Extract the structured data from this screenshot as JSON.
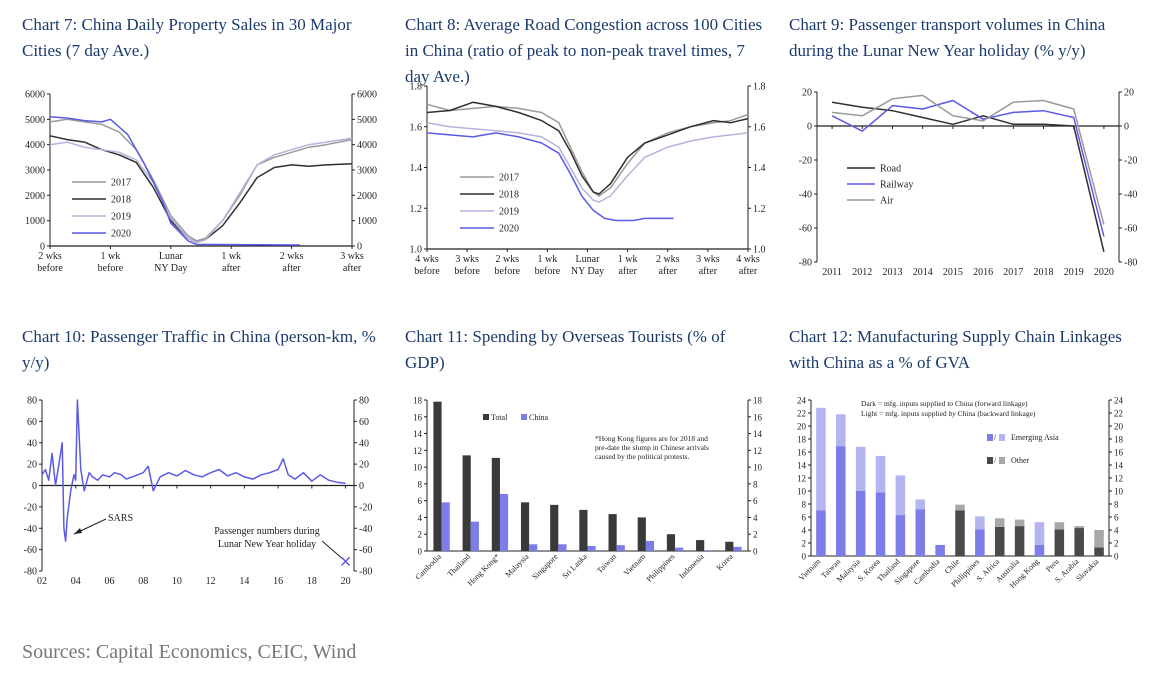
{
  "sources": "Sources: Capital Economics, CEIC, Wind",
  "chart_data": [
    {
      "id": "c7",
      "type": "line",
      "title": "Chart 7: China Daily Property Sales in 30 Major Cities (7 day Ave.)",
      "xlim": [
        -14,
        21
      ],
      "ylim": [
        0,
        6000
      ],
      "yticks": [
        "0",
        "1000",
        "2000",
        "3000",
        "4000",
        "5000",
        "6000"
      ],
      "ytick_values": [
        0,
        1000,
        2000,
        3000,
        4000,
        5000,
        6000
      ],
      "xticks": [
        {
          "v": -14,
          "l1": "2 wks",
          "l2": "before"
        },
        {
          "v": -7,
          "l1": "1 wk",
          "l2": "before"
        },
        {
          "v": 0,
          "l1": "Lunar",
          "l2": "NY Day"
        },
        {
          "v": 7,
          "l1": "1 wk",
          "l2": "after"
        },
        {
          "v": 14,
          "l1": "2 wks",
          "l2": "after"
        },
        {
          "v": 21,
          "l1": "3 wks",
          "l2": "after"
        }
      ],
      "series": [
        {
          "name": "2017",
          "color": "#9a9a9a",
          "x": [
            -14,
            -12,
            -10,
            -8,
            -6,
            -4,
            -2,
            0,
            2,
            3,
            4,
            6,
            8,
            10,
            12,
            14,
            16,
            18,
            21
          ],
          "y": [
            4900,
            5000,
            4900,
            4800,
            4500,
            3800,
            2600,
            1200,
            400,
            200,
            300,
            1000,
            2000,
            3200,
            3500,
            3700,
            3900,
            4000,
            4200
          ]
        },
        {
          "name": "2018",
          "color": "#2f2f2f",
          "x": [
            -14,
            -12,
            -10,
            -8,
            -6,
            -4,
            -2,
            0,
            2,
            3,
            4,
            6,
            8,
            10,
            12,
            14,
            16,
            18,
            21
          ],
          "y": [
            4350,
            4200,
            4100,
            3800,
            3600,
            3300,
            2300,
            1000,
            300,
            150,
            250,
            800,
            1700,
            2700,
            3100,
            3200,
            3150,
            3200,
            3250
          ]
        },
        {
          "name": "2019",
          "color": "#b4b4dc",
          "x": [
            -14,
            -12,
            -10,
            -8,
            -6,
            -4,
            -2,
            0,
            2,
            3,
            4,
            6,
            8,
            10,
            12,
            14,
            16,
            18,
            21
          ],
          "y": [
            4000,
            4100,
            3900,
            3800,
            3700,
            3400,
            2500,
            1100,
            300,
            150,
            250,
            1000,
            2100,
            3200,
            3600,
            3800,
            4000,
            4100,
            4250
          ]
        },
        {
          "name": "2020",
          "color": "#5a5ae6",
          "x": [
            -14,
            -12,
            -10,
            -8,
            -7,
            -5,
            -3,
            -1,
            0,
            2,
            3,
            5,
            10,
            15
          ],
          "y": [
            5100,
            5050,
            4950,
            4900,
            5000,
            4400,
            3200,
            1800,
            900,
            200,
            60,
            60,
            50,
            40
          ]
        }
      ]
    },
    {
      "id": "c8",
      "type": "line",
      "title": "Chart 8: Average Road Congestion across 100 Cities in China (ratio of peak to non-peak travel times, 7 day Ave.)",
      "xlim": [
        -28,
        28
      ],
      "ylim": [
        1.0,
        1.8
      ],
      "yticks": [
        "1.0",
        "1.2",
        "1.4",
        "1.6",
        "1.8"
      ],
      "ytick_values": [
        1.0,
        1.2,
        1.4,
        1.6,
        1.8
      ],
      "xticks": [
        {
          "v": -28,
          "l1": "4 wks",
          "l2": "before"
        },
        {
          "v": -21,
          "l1": "3 wks",
          "l2": "before"
        },
        {
          "v": -14,
          "l1": "2 wks",
          "l2": "before"
        },
        {
          "v": -7,
          "l1": "1 wk",
          "l2": "before"
        },
        {
          "v": 0,
          "l1": "Lunar",
          "l2": "NY Day"
        },
        {
          "v": 7,
          "l1": "1 wk",
          "l2": "after"
        },
        {
          "v": 14,
          "l1": "2 wks",
          "l2": "after"
        },
        {
          "v": 21,
          "l1": "3 wks",
          "l2": "after"
        },
        {
          "v": 28,
          "l1": "4 wks",
          "l2": "after"
        }
      ],
      "series": [
        {
          "name": "2017",
          "color": "#9a9a9a",
          "x": [
            -28,
            -24,
            -20,
            -16,
            -12,
            -8,
            -5,
            -3,
            -1,
            1,
            2,
            4,
            7,
            10,
            14,
            18,
            22,
            25,
            28
          ],
          "y": [
            1.71,
            1.68,
            1.69,
            1.7,
            1.69,
            1.67,
            1.62,
            1.5,
            1.38,
            1.28,
            1.26,
            1.3,
            1.42,
            1.52,
            1.57,
            1.6,
            1.62,
            1.63,
            1.66
          ]
        },
        {
          "name": "2018",
          "color": "#2f2f2f",
          "x": [
            -28,
            -24,
            -20,
            -16,
            -12,
            -8,
            -5,
            -3,
            -1,
            1,
            2,
            4,
            7,
            10,
            14,
            18,
            22,
            25,
            28
          ],
          "y": [
            1.67,
            1.68,
            1.72,
            1.7,
            1.67,
            1.63,
            1.58,
            1.48,
            1.36,
            1.28,
            1.27,
            1.32,
            1.45,
            1.52,
            1.56,
            1.6,
            1.63,
            1.62,
            1.64
          ]
        },
        {
          "name": "2019",
          "color": "#b4b4dc",
          "x": [
            -28,
            -24,
            -20,
            -16,
            -12,
            -8,
            -5,
            -3,
            -1,
            1,
            2,
            4,
            7,
            10,
            14,
            18,
            22,
            25,
            28
          ],
          "y": [
            1.62,
            1.6,
            1.59,
            1.58,
            1.57,
            1.55,
            1.5,
            1.4,
            1.3,
            1.24,
            1.23,
            1.26,
            1.36,
            1.45,
            1.5,
            1.53,
            1.55,
            1.56,
            1.57
          ]
        },
        {
          "name": "2020",
          "color": "#5a5ae6",
          "x": [
            -28,
            -24,
            -20,
            -16,
            -12,
            -8,
            -5,
            -3,
            -1,
            1,
            3,
            5,
            8,
            10,
            12,
            15
          ],
          "y": [
            1.57,
            1.56,
            1.55,
            1.57,
            1.55,
            1.52,
            1.47,
            1.37,
            1.26,
            1.19,
            1.15,
            1.14,
            1.14,
            1.15,
            1.15,
            1.15
          ]
        }
      ]
    },
    {
      "id": "c9",
      "type": "line",
      "title": "Chart 9: Passenger transport volumes in China during the Lunar New Year holiday (% y/y)",
      "xlim": [
        2010.5,
        2020.5
      ],
      "ylim": [
        -80,
        20
      ],
      "yticks": [
        "-80",
        "-60",
        "-40",
        "-20",
        "0",
        "20"
      ],
      "ytick_values": [
        -80,
        -60,
        -40,
        -20,
        0,
        20
      ],
      "xticks": [
        {
          "v": 2011,
          "l1": "2011"
        },
        {
          "v": 2012,
          "l1": "2012"
        },
        {
          "v": 2013,
          "l1": "2013"
        },
        {
          "v": 2014,
          "l1": "2014"
        },
        {
          "v": 2015,
          "l1": "2015"
        },
        {
          "v": 2016,
          "l1": "2016"
        },
        {
          "v": 2017,
          "l1": "2017"
        },
        {
          "v": 2018,
          "l1": "2018"
        },
        {
          "v": 2019,
          "l1": "2019"
        },
        {
          "v": 2020,
          "l1": "2020"
        }
      ],
      "series": [
        {
          "name": "Road",
          "color": "#2f2f2f",
          "x": [
            2011,
            2012,
            2013,
            2014,
            2015,
            2016,
            2017,
            2018,
            2019,
            2020
          ],
          "y": [
            14,
            11,
            9,
            5,
            1,
            6,
            1,
            1,
            0,
            -74
          ]
        },
        {
          "name": "Railway",
          "color": "#5a5ae6",
          "x": [
            2011,
            2012,
            2013,
            2014,
            2015,
            2016,
            2017,
            2018,
            2019,
            2020
          ],
          "y": [
            6,
            -3,
            12,
            10,
            15,
            4,
            8,
            9,
            5,
            -65
          ]
        },
        {
          "name": "Air",
          "color": "#9a9a9a",
          "x": [
            2011,
            2012,
            2013,
            2014,
            2015,
            2016,
            2017,
            2018,
            2019,
            2020
          ],
          "y": [
            8,
            6,
            16,
            18,
            6,
            3,
            14,
            15,
            10,
            -58
          ]
        }
      ]
    },
    {
      "id": "c10",
      "type": "line",
      "title": "Chart 10: Passenger Traffic in China (person-km, % y/y)",
      "xlim": [
        2002,
        2020.5
      ],
      "ylim": [
        -80,
        80
      ],
      "yticks": [
        "-80",
        "-60",
        "-40",
        "-20",
        "0",
        "20",
        "40",
        "60",
        "80"
      ],
      "ytick_values": [
        -80,
        -60,
        -40,
        -20,
        0,
        20,
        40,
        60,
        80
      ],
      "xticks": [
        {
          "v": 2002,
          "l1": "02"
        },
        {
          "v": 2004,
          "l1": "04"
        },
        {
          "v": 2006,
          "l1": "06"
        },
        {
          "v": 2008,
          "l1": "08"
        },
        {
          "v": 2010,
          "l1": "10"
        },
        {
          "v": 2012,
          "l1": "12"
        },
        {
          "v": 2014,
          "l1": "14"
        },
        {
          "v": 2016,
          "l1": "16"
        },
        {
          "v": 2018,
          "l1": "18"
        },
        {
          "v": 2020,
          "l1": "20"
        }
      ],
      "series": [
        {
          "name": "Passenger traffic",
          "color": "#5a5ae6",
          "x": [
            2002,
            2002.2,
            2002.4,
            2002.6,
            2002.8,
            2003,
            2003.2,
            2003.3,
            2003.4,
            2003.5,
            2003.7,
            2003.9,
            2004,
            2004.1,
            2004.3,
            2004.5,
            2004.8,
            2005,
            2005.3,
            2005.6,
            2006,
            2006.3,
            2006.7,
            2007,
            2007.5,
            2008,
            2008.3,
            2008.6,
            2009,
            2009.5,
            2010,
            2010.5,
            2011,
            2011.5,
            2012,
            2012.5,
            2013,
            2013.5,
            2014,
            2014.5,
            2015,
            2015.5,
            2016,
            2016.3,
            2016.6,
            2017,
            2017.5,
            2018,
            2018.5,
            2019,
            2019.5,
            2020
          ],
          "y": [
            10,
            15,
            5,
            30,
            0,
            20,
            40,
            -40,
            -52,
            -30,
            -5,
            10,
            5,
            80,
            15,
            -5,
            12,
            8,
            5,
            10,
            8,
            12,
            10,
            6,
            9,
            12,
            18,
            -5,
            8,
            12,
            9,
            14,
            10,
            8,
            12,
            15,
            9,
            12,
            8,
            6,
            10,
            12,
            15,
            25,
            10,
            6,
            12,
            4,
            10,
            5,
            3,
            2
          ]
        }
      ],
      "annotations": [
        "SARS",
        "Passenger numbers during",
        "Lunar New Year holiday"
      ],
      "marker": {
        "x": 2020,
        "y": -71
      }
    },
    {
      "id": "c11",
      "type": "bar",
      "title": "Chart 11: Spending by Overseas Tourists (% of GDP)",
      "ylim": [
        0,
        18
      ],
      "yticks": [
        "0",
        "2",
        "4",
        "6",
        "8",
        "10",
        "12",
        "14",
        "16",
        "18"
      ],
      "ytick_values": [
        0,
        2,
        4,
        6,
        8,
        10,
        12,
        14,
        16,
        18
      ],
      "categories": [
        "Cambodia",
        "Thailand",
        "Hong Kong*",
        "Malaysia",
        "Singapore",
        "Sri Lanka",
        "Taiwan",
        "Vietnam",
        "Philippines",
        "Indonesia",
        "Korea"
      ],
      "series": [
        {
          "name": "Total",
          "color": "#3a3a3a",
          "values": [
            17.8,
            11.4,
            11.1,
            5.8,
            5.5,
            4.9,
            4.4,
            4.0,
            2.0,
            1.3,
            1.1
          ]
        },
        {
          "name": "China",
          "color": "#7d7dea",
          "values": [
            5.8,
            3.5,
            6.8,
            0.8,
            0.8,
            0.6,
            0.7,
            1.2,
            0.4,
            0.1,
            0.5
          ]
        }
      ],
      "note": [
        "*Hong Kong figures are for 2018 and",
        "pre-date the slump in Chinese arrivals",
        "caused by the political protests."
      ]
    },
    {
      "id": "c12",
      "type": "bar",
      "title": "Chart 12: Manufacturing Supply Chain Linkages with China as a % of GVA",
      "ylim": [
        0,
        24
      ],
      "yticks": [
        "0",
        "2",
        "4",
        "6",
        "8",
        "10",
        "12",
        "14",
        "16",
        "18",
        "20",
        "22",
        "24"
      ],
      "ytick_values": [
        0,
        2,
        4,
        6,
        8,
        10,
        12,
        14,
        16,
        18,
        20,
        22,
        24
      ],
      "categories": [
        "Vietnam",
        "Taiwan",
        "Malaysia",
        "S. Korea",
        "Thailand",
        "Singapore",
        "Cambodia",
        "Chile",
        "Philippines",
        "S. Africa",
        "Australia",
        "Hong Kong",
        "Peru",
        "S. Arabia",
        "Slovakia"
      ],
      "asia": [
        true,
        true,
        true,
        true,
        true,
        true,
        true,
        false,
        true,
        false,
        false,
        true,
        false,
        false,
        false
      ],
      "forward": [
        7.0,
        16.9,
        10.0,
        9.8,
        6.3,
        7.2,
        1.7,
        7.0,
        4.1,
        4.5,
        4.6,
        1.7,
        4.1,
        4.3,
        1.3
      ],
      "backward": [
        15.8,
        4.9,
        6.8,
        5.6,
        6.1,
        1.5,
        0,
        0.9,
        2.0,
        1.3,
        1.0,
        3.5,
        1.1,
        0.3,
        2.7
      ],
      "legend": [
        {
          "label": "Emerging Asia"
        },
        {
          "label": "Other"
        }
      ],
      "legend_sep": "/",
      "note": [
        "Dark = mfg. inputs supplied ",
        "to",
        " China (forward linkage)",
        "Light = mfg. inputs supplied ",
        "by",
        " China (backward linkage)"
      ]
    }
  ]
}
